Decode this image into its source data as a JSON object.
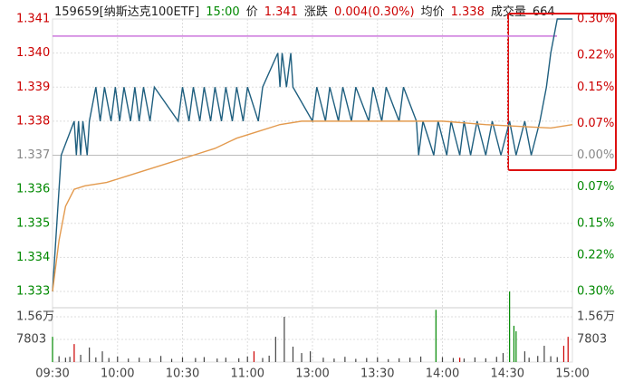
{
  "header": {
    "code": "159659[纳斯达克100ETF]",
    "time": "15:00",
    "price_label": "价",
    "price": "1.341",
    "change_label": "涨跌",
    "change": "0.004(0.30%)",
    "avg_label": "均价",
    "avg": "1.338",
    "volume_label": "成交量",
    "volume": "664"
  },
  "chart_data": {
    "type": "line",
    "xlim": [
      0,
      240
    ],
    "xticks": [
      {
        "value": 0,
        "label": "09:30"
      },
      {
        "value": 30,
        "label": "10:00"
      },
      {
        "value": 60,
        "label": "10:30"
      },
      {
        "value": 90,
        "label": "11:00"
      },
      {
        "value": 120,
        "label": "13:00"
      },
      {
        "value": 150,
        "label": "13:30"
      },
      {
        "value": 180,
        "label": "14:00"
      },
      {
        "value": 210,
        "label": "14:30"
      },
      {
        "value": 240,
        "label": "15:00"
      }
    ],
    "ylim": [
      1.333,
      1.341
    ],
    "yticks": [
      1.341,
      1.34,
      1.339,
      1.338,
      1.337,
      1.336,
      1.335,
      1.334,
      1.333
    ],
    "yticks_labels": [
      "1.341",
      "1.340",
      "1.339",
      "1.338",
      "1.337",
      "1.336",
      "1.335",
      "1.334",
      "1.333"
    ],
    "y2lim": [
      -0.3,
      0.3
    ],
    "y2ticks": [
      {
        "value": 0.3,
        "label": "0.30%"
      },
      {
        "value": 0.22,
        "label": "0.22%"
      },
      {
        "value": 0.15,
        "label": "0.15%"
      },
      {
        "value": 0.07,
        "label": "0.07%"
      },
      {
        "value": 0,
        "label": "0.00%"
      },
      {
        "value": -0.07,
        "label": "0.07%"
      },
      {
        "value": -0.15,
        "label": "0.15%"
      },
      {
        "value": -0.22,
        "label": "0.22%"
      },
      {
        "value": -0.3,
        "label": "0.30%"
      }
    ],
    "prev_close": 1.337,
    "reference_line": {
      "value": 1.3405,
      "color": "#cc77dd"
    },
    "up_color": "#cc0000",
    "down_color": "#008800",
    "flat_color": "#888888",
    "grid": true,
    "series": [
      {
        "color": "#1f5f7f",
        "x": [
          0,
          1,
          2,
          3,
          4,
          10,
          11,
          12,
          13,
          14,
          16,
          17,
          20,
          22,
          24,
          27,
          29,
          31,
          33,
          36,
          38,
          40,
          42,
          45,
          47,
          58,
          60,
          63,
          65,
          68,
          70,
          73,
          75,
          78,
          80,
          83,
          85,
          88,
          90,
          95,
          97,
          104,
          105,
          106,
          108,
          110,
          111,
          120,
          122,
          126,
          128,
          132,
          134,
          138,
          140,
          146,
          148,
          152,
          154,
          160,
          162,
          168,
          169,
          171,
          176,
          178,
          182,
          184,
          188,
          190,
          193,
          196,
          200,
          203,
          207,
          211,
          214,
          218,
          221,
          225,
          228,
          230,
          233,
          240
        ],
        "values": [
          1.333,
          1.334,
          1.335,
          1.336,
          1.337,
          1.338,
          1.337,
          1.338,
          1.337,
          1.338,
          1.337,
          1.338,
          1.339,
          1.338,
          1.339,
          1.338,
          1.339,
          1.338,
          1.339,
          1.338,
          1.339,
          1.338,
          1.339,
          1.338,
          1.339,
          1.338,
          1.339,
          1.338,
          1.339,
          1.338,
          1.339,
          1.338,
          1.339,
          1.338,
          1.339,
          1.338,
          1.339,
          1.338,
          1.339,
          1.338,
          1.339,
          1.34,
          1.339,
          1.34,
          1.339,
          1.34,
          1.339,
          1.338,
          1.339,
          1.338,
          1.339,
          1.338,
          1.339,
          1.338,
          1.339,
          1.338,
          1.339,
          1.338,
          1.339,
          1.338,
          1.339,
          1.338,
          1.337,
          1.338,
          1.337,
          1.338,
          1.337,
          1.338,
          1.337,
          1.338,
          1.337,
          1.338,
          1.337,
          1.338,
          1.337,
          1.338,
          1.337,
          1.338,
          1.337,
          1.338,
          1.339,
          1.34,
          1.341,
          1.341
        ]
      },
      {
        "color": "#e39a4e",
        "x": [
          0,
          3,
          6,
          10,
          15,
          25,
          35,
          45,
          55,
          65,
          75,
          85,
          95,
          105,
          115,
          130,
          180,
          200,
          230,
          240
        ],
        "values": [
          1.333,
          1.3345,
          1.3355,
          1.336,
          1.3361,
          1.3362,
          1.3364,
          1.3366,
          1.3368,
          1.337,
          1.3372,
          1.3375,
          1.3377,
          1.3379,
          1.338,
          1.338,
          1.338,
          1.3379,
          1.3378,
          1.3379
        ]
      }
    ],
    "volume_lim": [
      0,
      18720
    ],
    "volume_ticks": [
      {
        "value": 15600,
        "label": "1.56万"
      },
      7803
    ],
    "volume": [
      {
        "color": "#008800",
        "x": [
          0,
          177,
          211,
          213,
          214
        ],
        "values": [
          8700,
          18000,
          24300,
          12500,
          10600
        ]
      },
      {
        "color": "#cc0000",
        "x": [
          10,
          93,
          188,
          236,
          238
        ],
        "values": [
          6200,
          3700,
          1500,
          5600,
          8700
        ]
      },
      {
        "color": "#444444",
        "x": [
          3,
          6,
          8,
          13,
          17,
          20,
          23,
          26,
          30,
          35,
          40,
          45,
          50,
          55,
          60,
          66,
          70,
          76,
          80,
          86,
          90,
          97,
          100,
          103,
          107,
          111,
          115,
          119,
          125,
          130,
          135,
          140,
          145,
          150,
          155,
          160,
          165,
          170,
          180,
          185,
          190,
          195,
          200,
          205,
          208,
          218,
          220,
          224,
          227,
          230,
          233
        ],
        "values": [
          2000,
          1500,
          1800,
          2500,
          5000,
          1600,
          3700,
          1400,
          1900,
          1200,
          1500,
          1300,
          2100,
          1100,
          1600,
          1400,
          1700,
          1200,
          1500,
          1300,
          1900,
          1400,
          2200,
          8700,
          15600,
          5300,
          3100,
          3700,
          1500,
          1200,
          1800,
          1100,
          1400,
          1600,
          1000,
          1300,
          1500,
          1900,
          1700,
          1400,
          1200,
          1600,
          1300,
          1800,
          3100,
          3700,
          1500,
          2100,
          5600,
          2000,
          1700
        ]
      }
    ]
  }
}
